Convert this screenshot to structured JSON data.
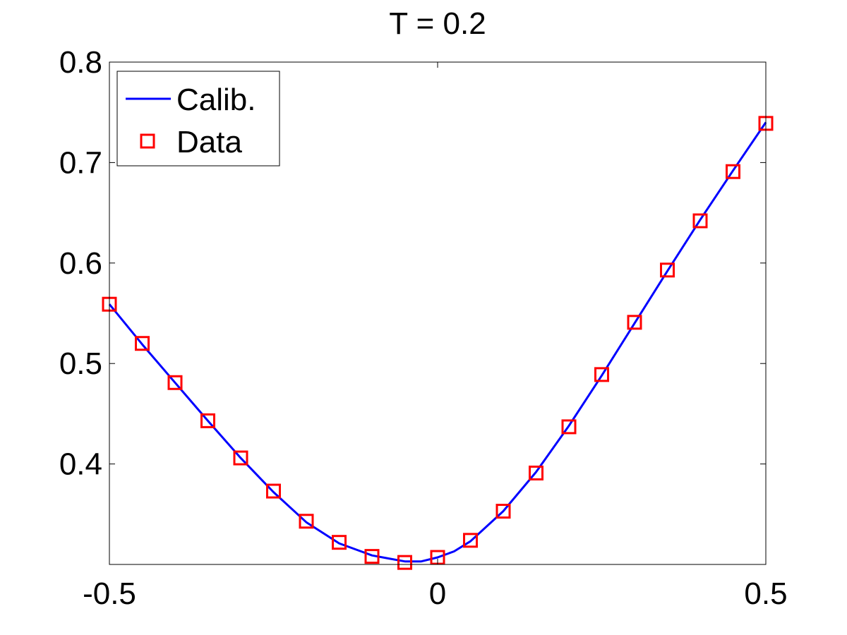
{
  "chart_data": {
    "type": "line",
    "title": "T = 0.2",
    "xlabel": "",
    "ylabel": "",
    "xlim": [
      -0.5,
      0.5
    ],
    "ylim": [
      0.3,
      0.8
    ],
    "x_ticks": [
      {
        "value": -0.5,
        "label": "-0.5"
      },
      {
        "value": 0,
        "label": "0"
      },
      {
        "value": 0.5,
        "label": "0.5"
      }
    ],
    "y_ticks": [
      {
        "value": 0.4,
        "label": "0.4"
      },
      {
        "value": 0.5,
        "label": "0.5"
      },
      {
        "value": 0.6,
        "label": "0.6"
      },
      {
        "value": 0.7,
        "label": "0.7"
      },
      {
        "value": 0.8,
        "label": "0.8"
      }
    ],
    "grid": false,
    "legend": {
      "placement": "top-left",
      "entries": [
        {
          "label": "Calib.",
          "marker": "line",
          "color": "#0000FF"
        },
        {
          "label": "Data",
          "marker": "square",
          "color": "#FF0000"
        }
      ]
    },
    "series": [
      {
        "name": "Calib.",
        "style": "line",
        "color": "#0000FF",
        "x": [
          -0.5,
          -0.45,
          -0.4,
          -0.35,
          -0.3,
          -0.25,
          -0.2,
          -0.15,
          -0.1,
          -0.075,
          -0.05,
          -0.025,
          0,
          0.025,
          0.05,
          0.1,
          0.15,
          0.2,
          0.25,
          0.3,
          0.35,
          0.4,
          0.45,
          0.5
        ],
        "y": [
          0.559,
          0.519,
          0.481,
          0.443,
          0.406,
          0.372,
          0.342,
          0.321,
          0.309,
          0.306,
          0.303,
          0.303,
          0.307,
          0.313,
          0.323,
          0.353,
          0.392,
          0.438,
          0.488,
          0.54,
          0.592,
          0.643,
          0.692,
          0.74
        ]
      },
      {
        "name": "Data",
        "style": "marker-square",
        "color": "#FF0000",
        "x": [
          -0.5,
          -0.45,
          -0.4,
          -0.35,
          -0.3,
          -0.25,
          -0.2,
          -0.15,
          -0.1,
          -0.05,
          0,
          0.05,
          0.1,
          0.15,
          0.2,
          0.25,
          0.3,
          0.35,
          0.4,
          0.45,
          0.5
        ],
        "y": [
          0.559,
          0.52,
          0.481,
          0.443,
          0.406,
          0.373,
          0.343,
          0.322,
          0.308,
          0.302,
          0.307,
          0.324,
          0.353,
          0.391,
          0.437,
          0.489,
          0.541,
          0.593,
          0.642,
          0.691,
          0.739
        ]
      }
    ]
  }
}
